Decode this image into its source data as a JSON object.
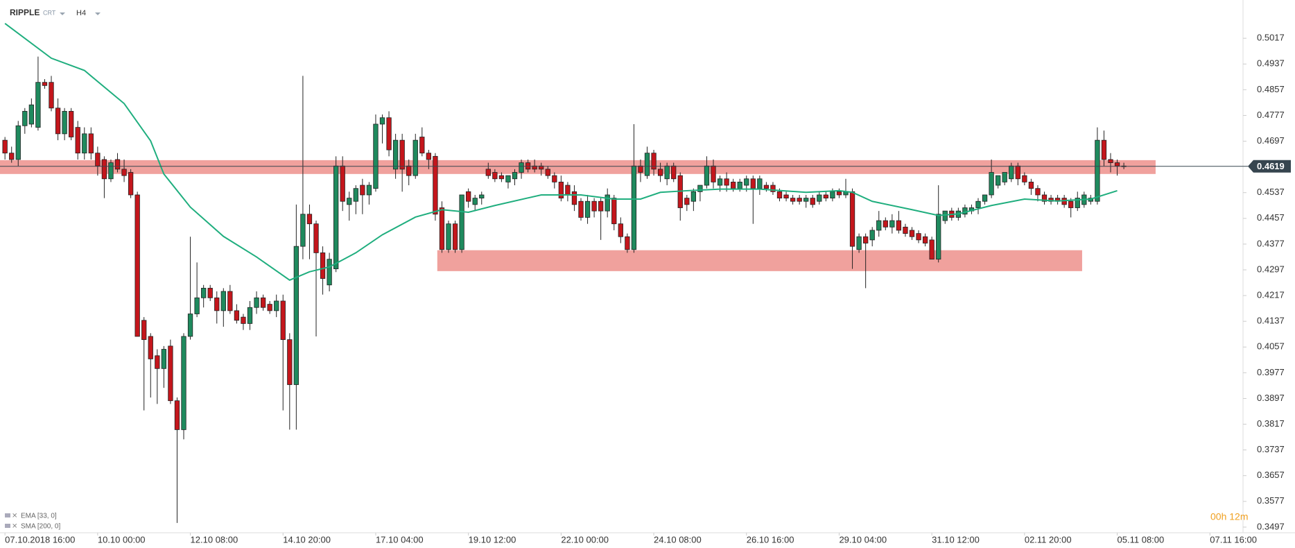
{
  "chart_data": {
    "type": "candlestick",
    "symbol": "RIPPLE",
    "chart_style": "CRT",
    "interval": "H4",
    "up_color": "#1f8a5e",
    "down_color": "#c4161c",
    "xlim": [
      -0.75,
      187
    ],
    "ylim": [
      0.3486,
      0.5136
    ],
    "yticks": [
      0.5017,
      0.4937,
      0.4857,
      0.4777,
      0.4697,
      0.4537,
      0.4457,
      0.4377,
      0.4297,
      0.4217,
      0.4137,
      0.4057,
      0.3977,
      0.3897,
      0.3817,
      0.3737,
      0.3657,
      0.3577,
      0.3497
    ],
    "xticks": [
      {
        "value": 0,
        "label": "07.10.2018 16:00"
      },
      {
        "value": 14,
        "label": "10.10 00:00"
      },
      {
        "value": 28,
        "label": "12.10 08:00"
      },
      {
        "value": 42,
        "label": "14.10 20:00"
      },
      {
        "value": 56,
        "label": "17.10 04:00"
      },
      {
        "value": 70,
        "label": "19.10 12:00"
      },
      {
        "value": 84,
        "label": "22.10 00:00"
      },
      {
        "value": 98,
        "label": "24.10 08:00"
      },
      {
        "value": 112,
        "label": "26.10 16:00"
      },
      {
        "value": 126,
        "label": "29.10 04:00"
      },
      {
        "value": 140,
        "label": "31.10 12:00"
      },
      {
        "value": 154,
        "label": "02.11 20:00"
      },
      {
        "value": 168,
        "label": "05.11 08:00"
      },
      {
        "value": 182,
        "label": "07.11 16:00"
      }
    ],
    "ohlc": [
      [
        0.47,
        0.471,
        0.464,
        0.466
      ],
      [
        0.466,
        0.468,
        0.463,
        0.464
      ],
      [
        0.464,
        0.476,
        0.462,
        0.4745
      ],
      [
        0.4745,
        0.48,
        0.472,
        0.479
      ],
      [
        0.475,
        0.483,
        0.474,
        0.481
      ],
      [
        0.474,
        0.496,
        0.473,
        0.488
      ],
      [
        0.488,
        0.489,
        0.486,
        0.487
      ],
      [
        0.488,
        0.49,
        0.479,
        0.48
      ],
      [
        0.48,
        0.483,
        0.47,
        0.472
      ],
      [
        0.472,
        0.48,
        0.47,
        0.479
      ],
      [
        0.479,
        0.48,
        0.47,
        0.471
      ],
      [
        0.474,
        0.476,
        0.464,
        0.466
      ],
      [
        0.466,
        0.474,
        0.464,
        0.472
      ],
      [
        0.472,
        0.474,
        0.464,
        0.466
      ],
      [
        0.466,
        0.468,
        0.459,
        0.462
      ],
      [
        0.464,
        0.465,
        0.452,
        0.458
      ],
      [
        0.458,
        0.464,
        0.457,
        0.463
      ],
      [
        0.464,
        0.466,
        0.46,
        0.461
      ],
      [
        0.461,
        0.464,
        0.457,
        0.459
      ],
      [
        0.46,
        0.461,
        0.452,
        0.453
      ],
      [
        0.453,
        0.454,
        0.409,
        0.409
      ],
      [
        0.414,
        0.415,
        0.386,
        0.408
      ],
      [
        0.409,
        0.41,
        0.39,
        0.402
      ],
      [
        0.403,
        0.405,
        0.388,
        0.399
      ],
      [
        0.399,
        0.406,
        0.393,
        0.405
      ],
      [
        0.406,
        0.408,
        0.388,
        0.389
      ],
      [
        0.389,
        0.39,
        0.351,
        0.38
      ],
      [
        0.38,
        0.41,
        0.377,
        0.409
      ],
      [
        0.409,
        0.44,
        0.408,
        0.416
      ],
      [
        0.416,
        0.432,
        0.415,
        0.421
      ],
      [
        0.421,
        0.425,
        0.418,
        0.424
      ],
      [
        0.424,
        0.425,
        0.42,
        0.421
      ],
      [
        0.421,
        0.423,
        0.413,
        0.417
      ],
      [
        0.417,
        0.424,
        0.412,
        0.423
      ],
      [
        0.423,
        0.425,
        0.416,
        0.417
      ],
      [
        0.417,
        0.419,
        0.413,
        0.414
      ],
      [
        0.415,
        0.416,
        0.411,
        0.413
      ],
      [
        0.413,
        0.42,
        0.411,
        0.418
      ],
      [
        0.418,
        0.423,
        0.416,
        0.421
      ],
      [
        0.421,
        0.422,
        0.417,
        0.418
      ],
      [
        0.419,
        0.42,
        0.416,
        0.417
      ],
      [
        0.417,
        0.422,
        0.415,
        0.42
      ],
      [
        0.42,
        0.422,
        0.386,
        0.408
      ],
      [
        0.408,
        0.41,
        0.38,
        0.394
      ],
      [
        0.394,
        0.45,
        0.38,
        0.437
      ],
      [
        0.437,
        0.49,
        0.433,
        0.447
      ],
      [
        0.447,
        0.45,
        0.433,
        0.444
      ],
      [
        0.444,
        0.445,
        0.409,
        0.435
      ],
      [
        0.435,
        0.437,
        0.422,
        0.427
      ],
      [
        0.425,
        0.435,
        0.423,
        0.433
      ],
      [
        0.43,
        0.465,
        0.429,
        0.462
      ],
      [
        0.462,
        0.465,
        0.448,
        0.451
      ],
      [
        0.45,
        0.454,
        0.445,
        0.452
      ],
      [
        0.451,
        0.456,
        0.447,
        0.455
      ],
      [
        0.456,
        0.458,
        0.447,
        0.453
      ],
      [
        0.453,
        0.457,
        0.45,
        0.456
      ],
      [
        0.455,
        0.478,
        0.454,
        0.475
      ],
      [
        0.475,
        0.478,
        0.469,
        0.477
      ],
      [
        0.477,
        0.479,
        0.465,
        0.467
      ],
      [
        0.461,
        0.472,
        0.458,
        0.47
      ],
      [
        0.47,
        0.472,
        0.454,
        0.461
      ],
      [
        0.462,
        0.464,
        0.456,
        0.459
      ],
      [
        0.459,
        0.472,
        0.458,
        0.47
      ],
      [
        0.471,
        0.474,
        0.465,
        0.466
      ],
      [
        0.466,
        0.467,
        0.461,
        0.464
      ],
      [
        0.465,
        0.466,
        0.445,
        0.447
      ],
      [
        0.449,
        0.451,
        0.435,
        0.436
      ],
      [
        0.436,
        0.445,
        0.435,
        0.444
      ],
      [
        0.444,
        0.445,
        0.435,
        0.436
      ],
      [
        0.436,
        0.453,
        0.435,
        0.453
      ],
      [
        0.454,
        0.455,
        0.449,
        0.451
      ],
      [
        0.45,
        0.453,
        0.448,
        0.452
      ],
      [
        0.452,
        0.454,
        0.45,
        0.453
      ],
      [
        0.461,
        0.463,
        0.458,
        0.459
      ],
      [
        0.46,
        0.461,
        0.457,
        0.458
      ],
      [
        0.459,
        0.46,
        0.457,
        0.458
      ],
      [
        0.457,
        0.459,
        0.455,
        0.459
      ],
      [
        0.458,
        0.461,
        0.456,
        0.46
      ],
      [
        0.46,
        0.464,
        0.458,
        0.463
      ],
      [
        0.463,
        0.464,
        0.46,
        0.461
      ],
      [
        0.462,
        0.464,
        0.46,
        0.461
      ],
      [
        0.462,
        0.463,
        0.459,
        0.461
      ],
      [
        0.461,
        0.462,
        0.458,
        0.459
      ],
      [
        0.459,
        0.46,
        0.455,
        0.457
      ],
      [
        0.457,
        0.459,
        0.451,
        0.452
      ],
      [
        0.456,
        0.457,
        0.451,
        0.453
      ],
      [
        0.454,
        0.456,
        0.448,
        0.45
      ],
      [
        0.451,
        0.452,
        0.445,
        0.446
      ],
      [
        0.446,
        0.453,
        0.444,
        0.451
      ],
      [
        0.451,
        0.452,
        0.446,
        0.448
      ],
      [
        0.451,
        0.452,
        0.439,
        0.448
      ],
      [
        0.448,
        0.455,
        0.446,
        0.453
      ],
      [
        0.452,
        0.453,
        0.442,
        0.444
      ],
      [
        0.444,
        0.446,
        0.438,
        0.44
      ],
      [
        0.44,
        0.441,
        0.435,
        0.436
      ],
      [
        0.436,
        0.475,
        0.435,
        0.462
      ],
      [
        0.462,
        0.464,
        0.457,
        0.46
      ],
      [
        0.459,
        0.468,
        0.458,
        0.466
      ],
      [
        0.466,
        0.467,
        0.459,
        0.461
      ],
      [
        0.461,
        0.463,
        0.457,
        0.459
      ],
      [
        0.458,
        0.463,
        0.456,
        0.462
      ],
      [
        0.462,
        0.463,
        0.457,
        0.458
      ],
      [
        0.459,
        0.46,
        0.445,
        0.449
      ],
      [
        0.452,
        0.453,
        0.448,
        0.45
      ],
      [
        0.451,
        0.455,
        0.448,
        0.454
      ],
      [
        0.454,
        0.456,
        0.451,
        0.456
      ],
      [
        0.456,
        0.465,
        0.455,
        0.462
      ],
      [
        0.462,
        0.464,
        0.455,
        0.457
      ],
      [
        0.456,
        0.459,
        0.454,
        0.458
      ],
      [
        0.458,
        0.46,
        0.454,
        0.456
      ],
      [
        0.457,
        0.458,
        0.454,
        0.455
      ],
      [
        0.455,
        0.458,
        0.454,
        0.457
      ],
      [
        0.456,
        0.459,
        0.454,
        0.458
      ],
      [
        0.458,
        0.459,
        0.444,
        0.455
      ],
      [
        0.455,
        0.459,
        0.453,
        0.458
      ],
      [
        0.456,
        0.457,
        0.454,
        0.455
      ],
      [
        0.456,
        0.457,
        0.453,
        0.454
      ],
      [
        0.454,
        0.455,
        0.451,
        0.452
      ],
      [
        0.453,
        0.454,
        0.451,
        0.452
      ],
      [
        0.452,
        0.453,
        0.45,
        0.451
      ],
      [
        0.452,
        0.453,
        0.45,
        0.451
      ],
      [
        0.451,
        0.453,
        0.449,
        0.452
      ],
      [
        0.452,
        0.453,
        0.449,
        0.45
      ],
      [
        0.451,
        0.454,
        0.45,
        0.453
      ],
      [
        0.453,
        0.454,
        0.451,
        0.452
      ],
      [
        0.452,
        0.455,
        0.451,
        0.454
      ],
      [
        0.454,
        0.455,
        0.452,
        0.453
      ],
      [
        0.453,
        0.458,
        0.452,
        0.454
      ],
      [
        0.454,
        0.455,
        0.43,
        0.437
      ],
      [
        0.436,
        0.441,
        0.435,
        0.44
      ],
      [
        0.44,
        0.441,
        0.424,
        0.438
      ],
      [
        0.439,
        0.443,
        0.437,
        0.442
      ],
      [
        0.442,
        0.448,
        0.44,
        0.445
      ],
      [
        0.445,
        0.446,
        0.442,
        0.443
      ],
      [
        0.443,
        0.447,
        0.441,
        0.445
      ],
      [
        0.445,
        0.448,
        0.441,
        0.442
      ],
      [
        0.443,
        0.444,
        0.44,
        0.441
      ],
      [
        0.442,
        0.443,
        0.439,
        0.44
      ],
      [
        0.441,
        0.442,
        0.438,
        0.439
      ],
      [
        0.44,
        0.441,
        0.437,
        0.438
      ],
      [
        0.439,
        0.44,
        0.433,
        0.433
      ],
      [
        0.433,
        0.456,
        0.432,
        0.447
      ],
      [
        0.445,
        0.448,
        0.444,
        0.448
      ],
      [
        0.448,
        0.449,
        0.445,
        0.446
      ],
      [
        0.446,
        0.449,
        0.445,
        0.448
      ],
      [
        0.447,
        0.45,
        0.446,
        0.449
      ],
      [
        0.448,
        0.45,
        0.447,
        0.449
      ],
      [
        0.449,
        0.452,
        0.447,
        0.451
      ],
      [
        0.451,
        0.453,
        0.45,
        0.453
      ],
      [
        0.453,
        0.464,
        0.452,
        0.46
      ],
      [
        0.456,
        0.459,
        0.455,
        0.459
      ],
      [
        0.457,
        0.46,
        0.456,
        0.46
      ],
      [
        0.458,
        0.463,
        0.457,
        0.462
      ],
      [
        0.462,
        0.463,
        0.456,
        0.458
      ],
      [
        0.459,
        0.46,
        0.456,
        0.457
      ],
      [
        0.457,
        0.458,
        0.453,
        0.455
      ],
      [
        0.455,
        0.456,
        0.451,
        0.453
      ],
      [
        0.453,
        0.454,
        0.45,
        0.451
      ],
      [
        0.452,
        0.453,
        0.45,
        0.451
      ],
      [
        0.452,
        0.453,
        0.45,
        0.451
      ],
      [
        0.452,
        0.453,
        0.449,
        0.45
      ],
      [
        0.451,
        0.452,
        0.446,
        0.449
      ],
      [
        0.449,
        0.454,
        0.448,
        0.452
      ],
      [
        0.45,
        0.454,
        0.449,
        0.453
      ],
      [
        0.451,
        0.453,
        0.45,
        0.452
      ],
      [
        0.451,
        0.474,
        0.45,
        0.47
      ],
      [
        0.47,
        0.473,
        0.462,
        0.464
      ],
      [
        0.464,
        0.466,
        0.46,
        0.463
      ],
      [
        0.463,
        0.464,
        0.459,
        0.462
      ],
      [
        0.462,
        0.463,
        0.461,
        0.4619
      ]
    ],
    "indicators": [
      {
        "name": "EMA [33, 0]",
        "color": "#1fae7e",
        "x": [
          0,
          7,
          12,
          18,
          22,
          24,
          28,
          33,
          38,
          43,
          46,
          49,
          53,
          57,
          62,
          66,
          70,
          74,
          81,
          87,
          92,
          96,
          99,
          103,
          108,
          114,
          121,
          126,
          128,
          131,
          137,
          141,
          144,
          149,
          154,
          159,
          164,
          168
        ],
        "values": [
          0.5063,
          0.4955,
          0.4917,
          0.4814,
          0.4698,
          0.4595,
          0.4492,
          0.4401,
          0.4337,
          0.4265,
          0.4291,
          0.4306,
          0.435,
          0.4406,
          0.4461,
          0.4484,
          0.4476,
          0.4497,
          0.453,
          0.453,
          0.4517,
          0.4517,
          0.4538,
          0.4543,
          0.4548,
          0.4548,
          0.4538,
          0.4543,
          0.4538,
          0.451,
          0.4484,
          0.4466,
          0.4471,
          0.4497,
          0.4517,
          0.4511,
          0.4517,
          0.4543
        ]
      },
      {
        "name": "SMA [200, 0]"
      }
    ],
    "zones": [
      {
        "color": "#ec8a85",
        "x": [
          -0.75,
          173.8
        ],
        "y": [
          0.4595,
          0.4638
        ]
      },
      {
        "color": "#ec8a85",
        "x": [
          65.3,
          162.7
        ],
        "y": [
          0.4293,
          0.4358
        ]
      }
    ],
    "last_price": 0.4619,
    "countdown": "00h 12m"
  }
}
